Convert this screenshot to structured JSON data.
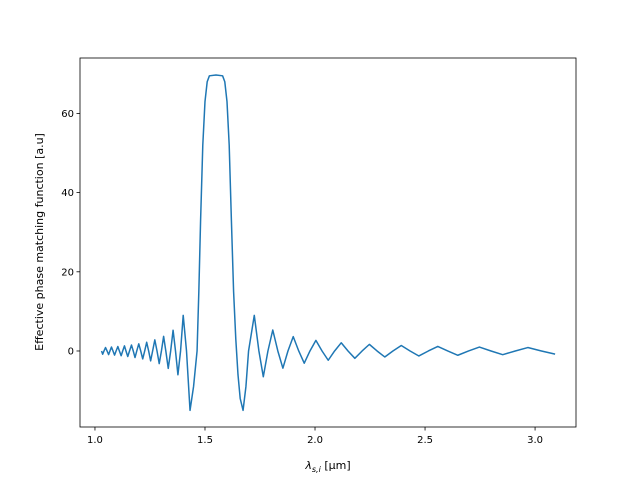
{
  "chart_data": {
    "type": "line",
    "xlabel": "λ",
    "xlabel_subscript": "s,i",
    "xlabel_unit": "[μm]",
    "ylabel": "Effective phase matching function [a.u]",
    "xlim": [
      0.932,
      3.186
    ],
    "ylim": [
      -19.2,
      74.0
    ],
    "xticks": [
      {
        "value": 1.0,
        "label": "1.0"
      },
      {
        "value": 1.5,
        "label": "1.5"
      },
      {
        "value": 2.0,
        "label": "2.0"
      },
      {
        "value": 2.5,
        "label": "2.5"
      },
      {
        "value": 3.0,
        "label": "3.0"
      }
    ],
    "yticks": [
      0,
      20,
      40,
      60
    ],
    "grid": false,
    "series": [
      {
        "color": "#1f77b4",
        "x": [
          1.03,
          1.035,
          1.041,
          1.048,
          1.055,
          1.062,
          1.068,
          1.075,
          1.082,
          1.089,
          1.096,
          1.104,
          1.111,
          1.119,
          1.126,
          1.134,
          1.141,
          1.149,
          1.157,
          1.166,
          1.174,
          1.182,
          1.19,
          1.199,
          1.208,
          1.217,
          1.226,
          1.235,
          1.244,
          1.253,
          1.262,
          1.272,
          1.282,
          1.292,
          1.302,
          1.312,
          1.322,
          1.333,
          1.344,
          1.355,
          1.366,
          1.377,
          1.389,
          1.401,
          1.416,
          1.432,
          1.448,
          1.464,
          1.472,
          1.48,
          1.49,
          1.5,
          1.51,
          1.52,
          1.55,
          1.58,
          1.59,
          1.6,
          1.61,
          1.62,
          1.63,
          1.64,
          1.65,
          1.66,
          1.673,
          1.686,
          1.698,
          1.724,
          1.745,
          1.765,
          1.786,
          1.808,
          1.831,
          1.854,
          1.877,
          1.901,
          1.926,
          1.951,
          1.977,
          2.004,
          2.032,
          2.06,
          2.089,
          2.119,
          2.15,
          2.181,
          2.214,
          2.247,
          2.282,
          2.317,
          2.354,
          2.392,
          2.432,
          2.472,
          2.515,
          2.558,
          2.603,
          2.649,
          2.698,
          2.747,
          2.8,
          2.853,
          2.91,
          2.967,
          3.029,
          3.091
        ],
        "values": [
          0,
          -0.82,
          0,
          0.87,
          0,
          -0.92,
          0,
          1.0,
          0,
          -1.05,
          0,
          1.12,
          0,
          -1.2,
          0,
          1.3,
          0,
          -1.4,
          0,
          1.5,
          0,
          -1.65,
          0,
          1.8,
          0,
          -2.0,
          0,
          2.2,
          0,
          -2.5,
          0,
          2.8,
          0,
          -3.2,
          0,
          3.7,
          0,
          -4.4,
          0,
          5.25,
          0,
          -6,
          0,
          9,
          0,
          -15,
          -9,
          0,
          15,
          33,
          52,
          63,
          68,
          69.5,
          69.7,
          69.5,
          68,
          63,
          52,
          33,
          15,
          3,
          -6,
          -12,
          -15,
          -9,
          0,
          9,
          0,
          -6.5,
          0,
          5.3,
          0,
          -4.35,
          0,
          3.63,
          0,
          -3.09,
          0,
          2.67,
          0,
          -2.34,
          0,
          2.07,
          0,
          -1.85,
          0,
          1.67,
          0,
          -1.51,
          0,
          1.38,
          0,
          -1.26,
          0,
          1.16,
          0,
          -1.08,
          0,
          1.0,
          0,
          -0.93,
          0,
          0.87,
          0,
          -0.8
        ]
      }
    ]
  }
}
